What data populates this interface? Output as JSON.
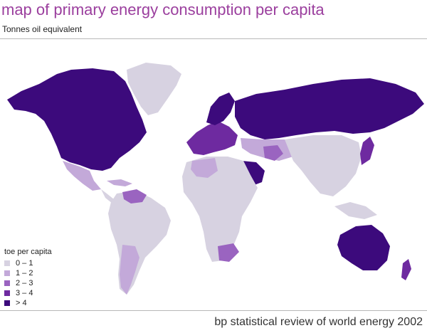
{
  "header": {
    "title": "map of primary energy consumption per capita",
    "subtitle": "Tonnes oil equivalent"
  },
  "legend": {
    "title": "toe per capita",
    "items": [
      {
        "label": "0 – 1",
        "color": "#d7d2e1"
      },
      {
        "label": "1 – 2",
        "color": "#c3a9d9"
      },
      {
        "label": "2 – 3",
        "color": "#9a64c0"
      },
      {
        "label": "3 – 4",
        "color": "#6e2aa0"
      },
      {
        "label": "> 4",
        "color": "#3c0a7c"
      }
    ]
  },
  "footer": {
    "source": "bp statistical review of world energy 2002"
  },
  "colors": {
    "title": "#9b3f9e",
    "water": "#ffffff",
    "band_0_1": "#d7d2e1",
    "band_1_2": "#c3a9d9",
    "band_2_3": "#9a64c0",
    "band_3_4": "#6e2aa0",
    "band_gt_4": "#3c0a7c"
  }
}
